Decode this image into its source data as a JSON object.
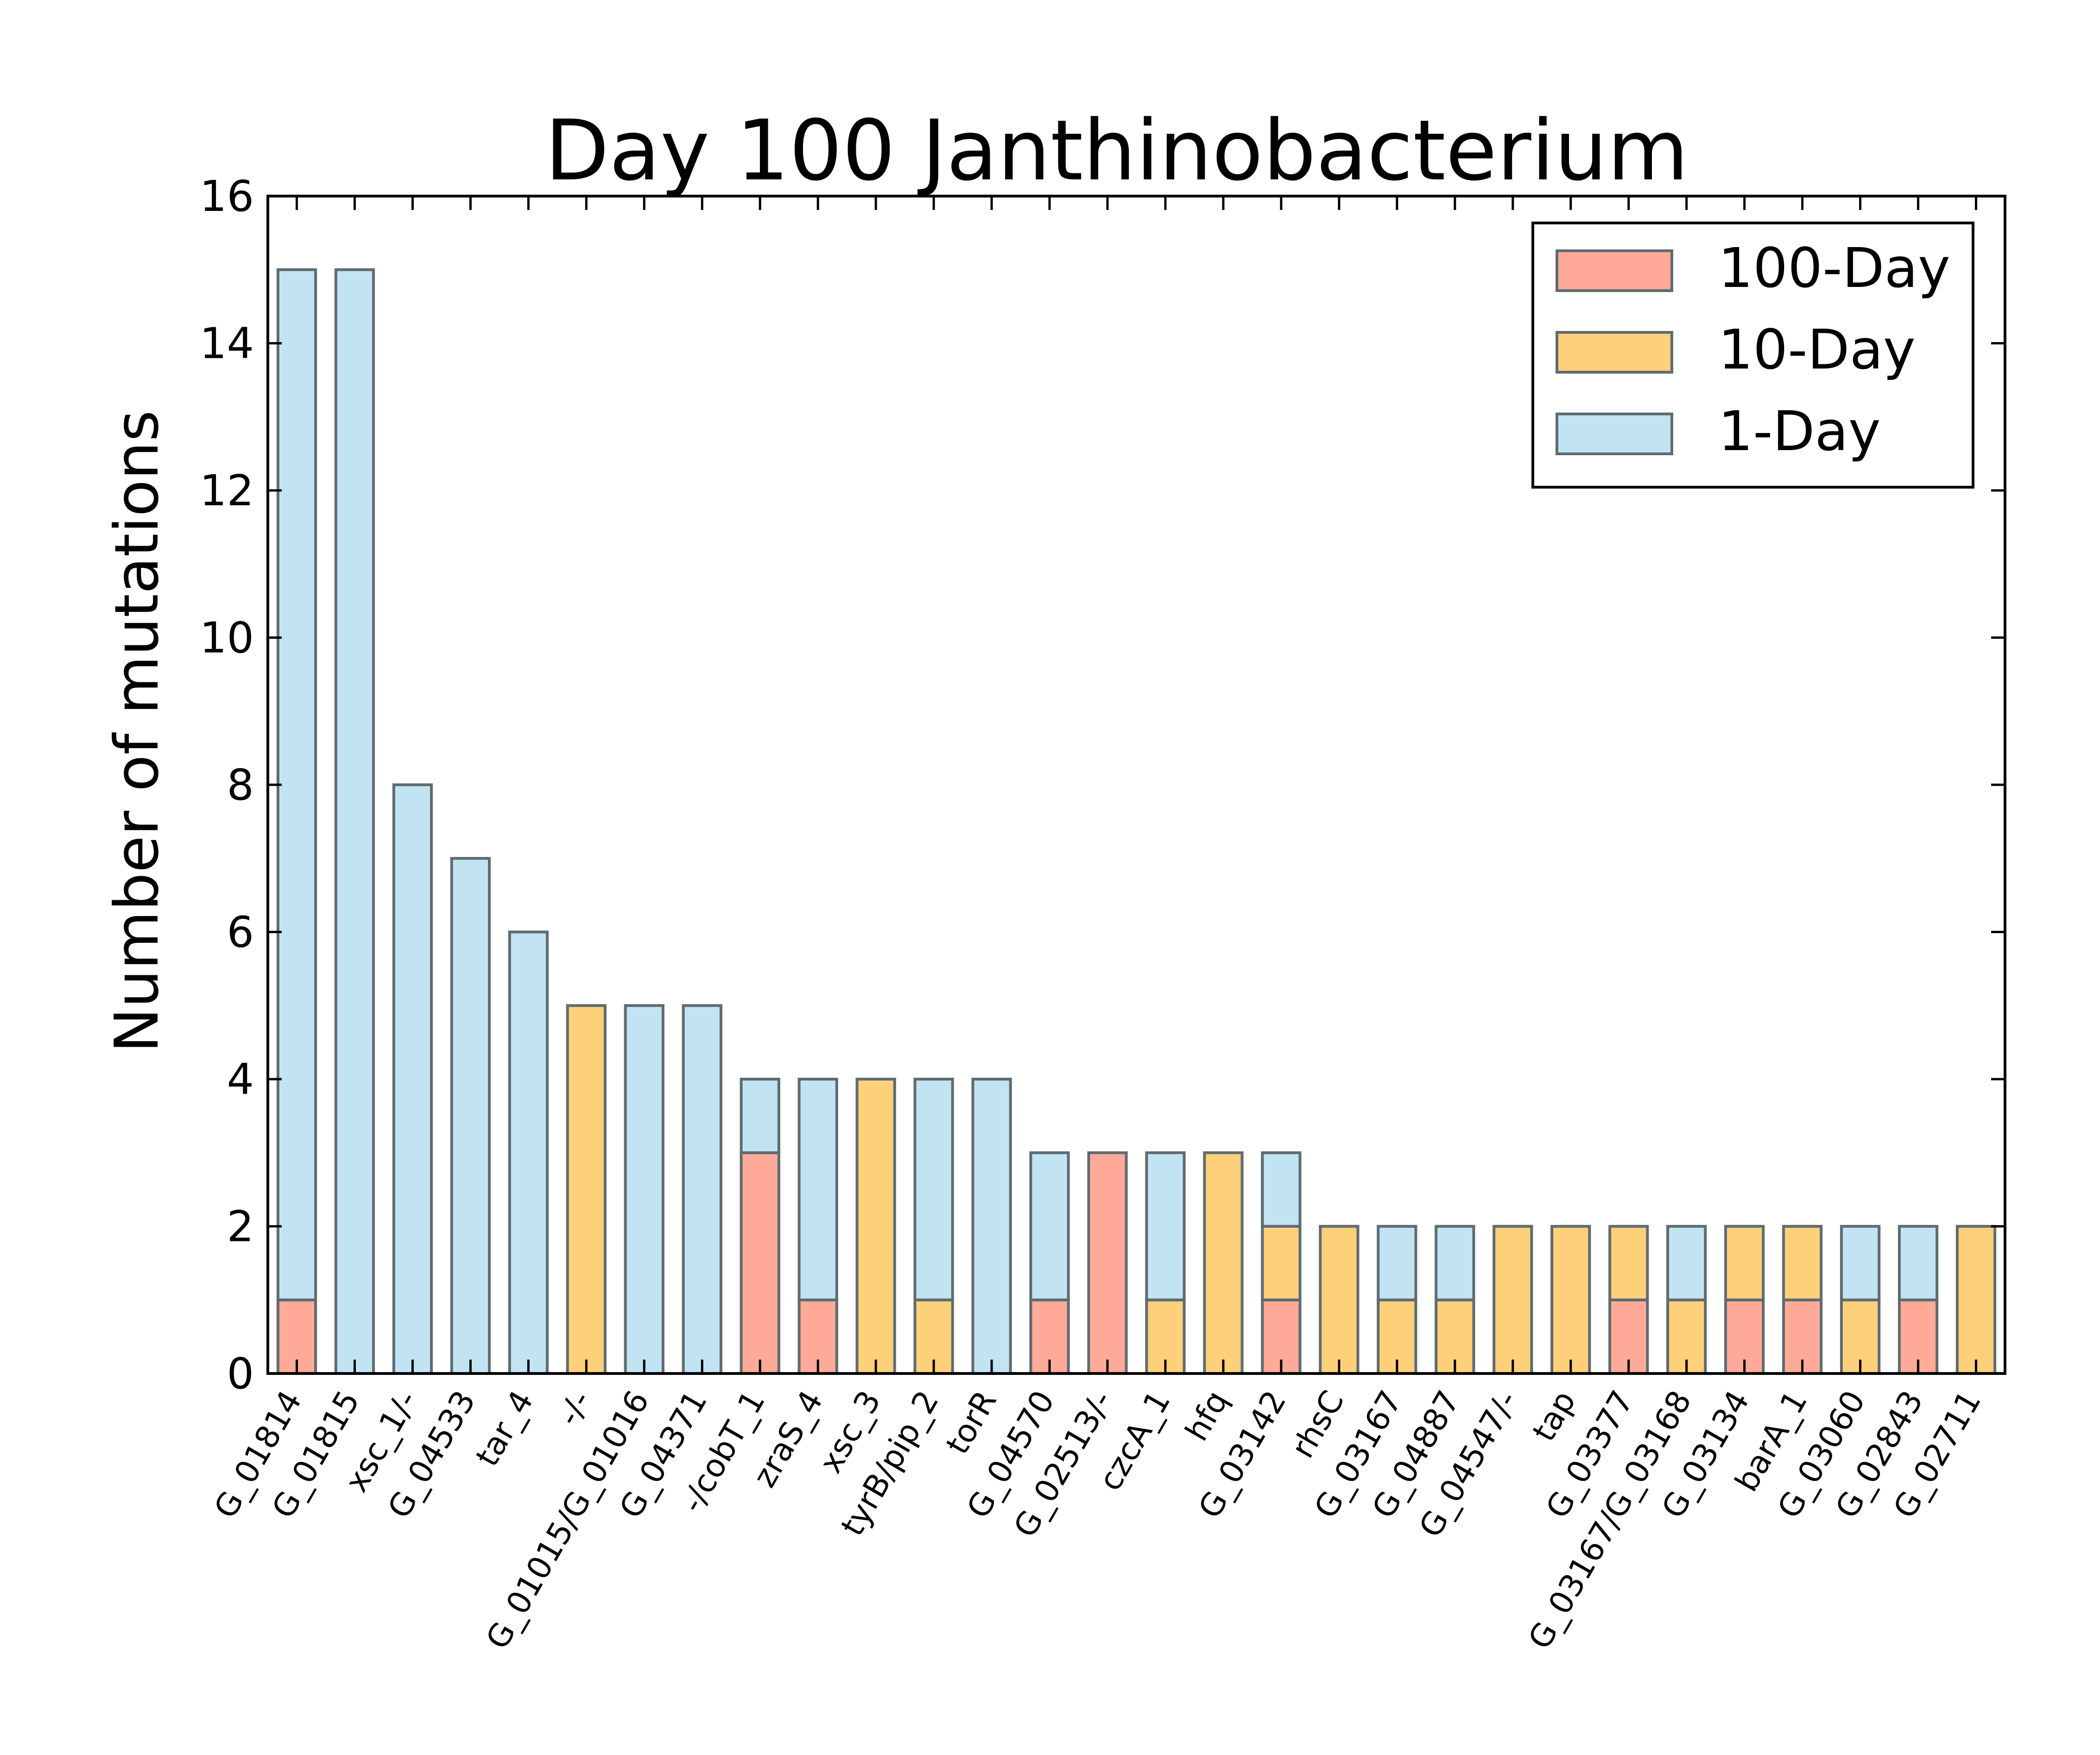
{
  "chart_data": {
    "type": "bar",
    "stacked": true,
    "title": "Day 100 Janthinobacterium",
    "xlabel": "",
    "ylabel": "Number of mutations",
    "ylim": [
      0,
      16
    ],
    "yticks": [
      0,
      2,
      4,
      6,
      8,
      10,
      12,
      14,
      16
    ],
    "grid": false,
    "legend_position": "top-right",
    "categories": [
      "G_01814",
      "G_01815",
      "xsc_1/-",
      "G_04533",
      "tar_4",
      "-/-",
      "G_01015/G_01016",
      "G_04371",
      "-/cobT_1",
      "zraS_4",
      "xsc_3",
      "tyrB/pip_2",
      "torR",
      "G_04570",
      "G_02513/-",
      "czcA_1",
      "hfq",
      "G_03142",
      "rhsC",
      "G_03167",
      "G_04887",
      "G_04547/-",
      "tap",
      "G_03377",
      "G_03167/G_03168",
      "G_03134",
      "barA_1",
      "G_03060",
      "G_02843",
      "G_02711"
    ],
    "series": [
      {
        "name": "100-Day",
        "color": "#ffaa99",
        "values": [
          1,
          0,
          0,
          0,
          0,
          0,
          0,
          0,
          3,
          1,
          0,
          0,
          0,
          1,
          3,
          0,
          0,
          1,
          0,
          0,
          0,
          0,
          0,
          1,
          0,
          1,
          1,
          0,
          1,
          0
        ]
      },
      {
        "name": "10-Day",
        "color": "#ffd07a",
        "values": [
          0,
          0,
          0,
          0,
          0,
          5,
          0,
          0,
          0,
          0,
          4,
          1,
          0,
          0,
          0,
          1,
          3,
          1,
          2,
          1,
          1,
          2,
          2,
          1,
          1,
          1,
          1,
          1,
          0,
          2
        ]
      },
      {
        "name": "1-Day",
        "color": "#c2e4f2",
        "values": [
          14,
          15,
          8,
          7,
          6,
          0,
          5,
          5,
          1,
          3,
          0,
          3,
          4,
          2,
          0,
          2,
          0,
          1,
          0,
          1,
          1,
          0,
          0,
          0,
          1,
          0,
          0,
          1,
          1,
          0
        ]
      }
    ]
  }
}
